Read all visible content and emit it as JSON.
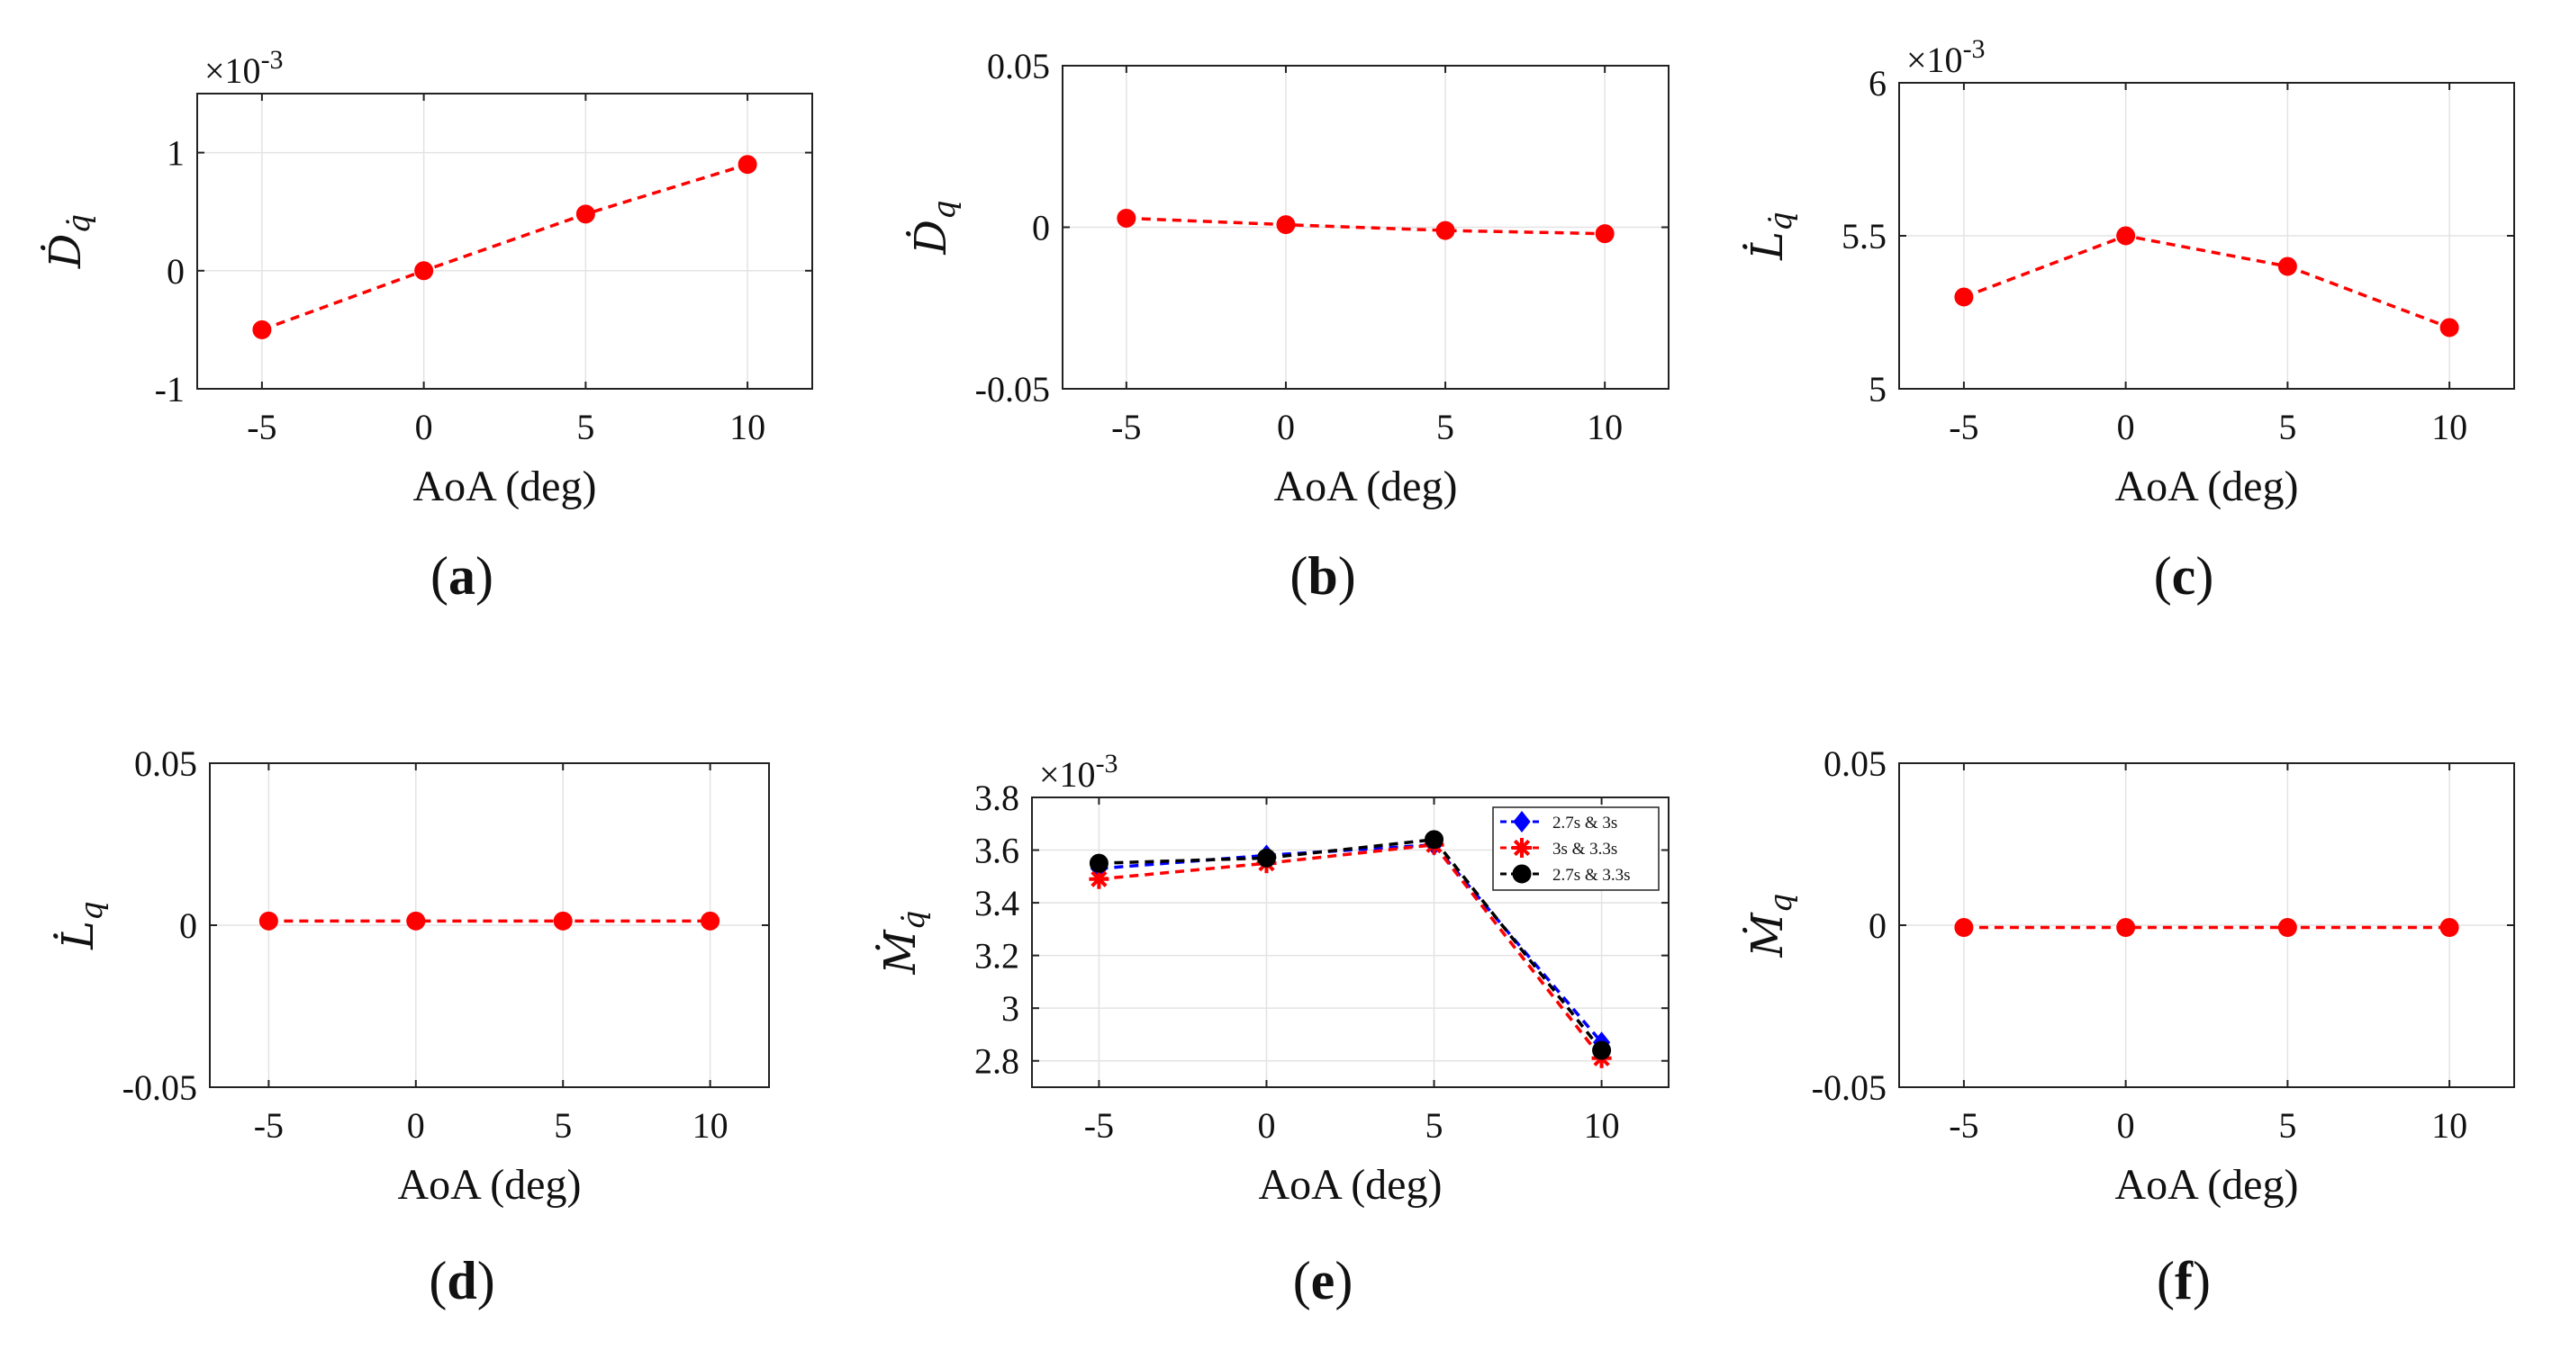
{
  "colors": {
    "red": "#ff0000",
    "blue": "#0000ff",
    "black": "#000000",
    "grid": "#e3e3e3",
    "axis": "#222222"
  },
  "chart_data": [
    {
      "type": "line",
      "caption": "a",
      "ylabel": "Ḋ",
      "ylabel_sub": "q̇",
      "xlabel": "AoA (deg)",
      "exponent_label": "×10",
      "exponent": "-3",
      "x": [
        -5,
        0,
        5,
        10
      ],
      "xlim": [
        -7,
        12
      ],
      "xticks": [
        -5,
        0,
        5,
        10
      ],
      "ylim": [
        -1,
        1.5
      ],
      "yticks": [
        -1,
        0,
        1
      ],
      "ytick_labels": [
        "-1",
        "0",
        "1"
      ],
      "series": [
        {
          "color": "#ff0000",
          "marker": "circle",
          "values": [
            -0.5,
            0.0,
            0.48,
            0.9
          ]
        }
      ]
    },
    {
      "type": "line",
      "caption": "b",
      "ylabel": "Ḋ",
      "ylabel_sub": "q",
      "xlabel": "AoA (deg)",
      "x": [
        -5,
        0,
        5,
        10
      ],
      "xlim": [
        -7,
        12
      ],
      "xticks": [
        -5,
        0,
        5,
        10
      ],
      "ylim": [
        -0.05,
        0.05
      ],
      "yticks": [
        -0.05,
        0,
        0.05
      ],
      "ytick_labels": [
        "-0.05",
        "0",
        "0.05"
      ],
      "series": [
        {
          "color": "#ff0000",
          "marker": "circle",
          "values": [
            0.0028,
            0.0008,
            -0.001,
            -0.002
          ]
        }
      ]
    },
    {
      "type": "line",
      "caption": "c",
      "ylabel": "L̇",
      "ylabel_sub": "q̇",
      "xlabel": "AoA (deg)",
      "exponent_label": "×10",
      "exponent": "-3",
      "x": [
        -5,
        0,
        5,
        10
      ],
      "xlim": [
        -7,
        12
      ],
      "xticks": [
        -5,
        0,
        5,
        10
      ],
      "ylim": [
        5,
        6
      ],
      "yticks": [
        5,
        5.5,
        6
      ],
      "ytick_labels": [
        "5",
        "5.5",
        "6"
      ],
      "series": [
        {
          "color": "#ff0000",
          "marker": "circle",
          "values": [
            5.3,
            5.5,
            5.4,
            5.2
          ]
        }
      ]
    },
    {
      "type": "line",
      "caption": "d",
      "ylabel": "L̇",
      "ylabel_sub": "q",
      "xlabel": "AoA (deg)",
      "x": [
        -5,
        0,
        5,
        10
      ],
      "xlim": [
        -7,
        12
      ],
      "xticks": [
        -5,
        0,
        5,
        10
      ],
      "ylim": [
        -0.05,
        0.05
      ],
      "yticks": [
        -0.05,
        0,
        0.05
      ],
      "ytick_labels": [
        "-0.05",
        "0",
        "0.05"
      ],
      "series": [
        {
          "color": "#ff0000",
          "marker": "circle",
          "values": [
            0.0013,
            0.0013,
            0.0013,
            0.0013
          ]
        }
      ]
    },
    {
      "type": "line",
      "caption": "e",
      "ylabel": "Ṁ",
      "ylabel_sub": "q̇",
      "xlabel": "AoA (deg)",
      "exponent_label": "×10",
      "exponent": "-3",
      "x": [
        -5,
        0,
        5,
        10
      ],
      "xlim": [
        -7,
        12
      ],
      "xticks": [
        -5,
        0,
        5,
        10
      ],
      "ylim": [
        2.7,
        3.8
      ],
      "yticks": [
        2.8,
        3.0,
        3.2,
        3.4,
        3.6,
        3.8
      ],
      "ytick_labels": [
        "2.8",
        "3",
        "3.2",
        "3.4",
        "3.6",
        "3.8"
      ],
      "legend": "top-right",
      "series": [
        {
          "name": "2.7s & 3s",
          "color": "#0000ff",
          "marker": "diamond",
          "values": [
            3.53,
            3.58,
            3.62,
            2.87
          ]
        },
        {
          "name": "3s & 3.3s",
          "color": "#ff0000",
          "marker": "star",
          "values": [
            3.49,
            3.55,
            3.62,
            2.81
          ]
        },
        {
          "name": "2.7s & 3.3s",
          "color": "#000000",
          "marker": "circle",
          "values": [
            3.55,
            3.57,
            3.64,
            2.84
          ]
        }
      ]
    },
    {
      "type": "line",
      "caption": "f",
      "ylabel": "Ṁ",
      "ylabel_sub": "q",
      "xlabel": "AoA (deg)",
      "x": [
        -5,
        0,
        5,
        10
      ],
      "xlim": [
        -7,
        12
      ],
      "xticks": [
        -5,
        0,
        5,
        10
      ],
      "ylim": [
        -0.05,
        0.05
      ],
      "yticks": [
        -0.05,
        0,
        0.05
      ],
      "ytick_labels": [
        "-0.05",
        "0",
        "0.05"
      ],
      "series": [
        {
          "color": "#ff0000",
          "marker": "circle",
          "values": [
            -0.0007,
            -0.0007,
            -0.0007,
            -0.0007
          ]
        }
      ]
    }
  ]
}
